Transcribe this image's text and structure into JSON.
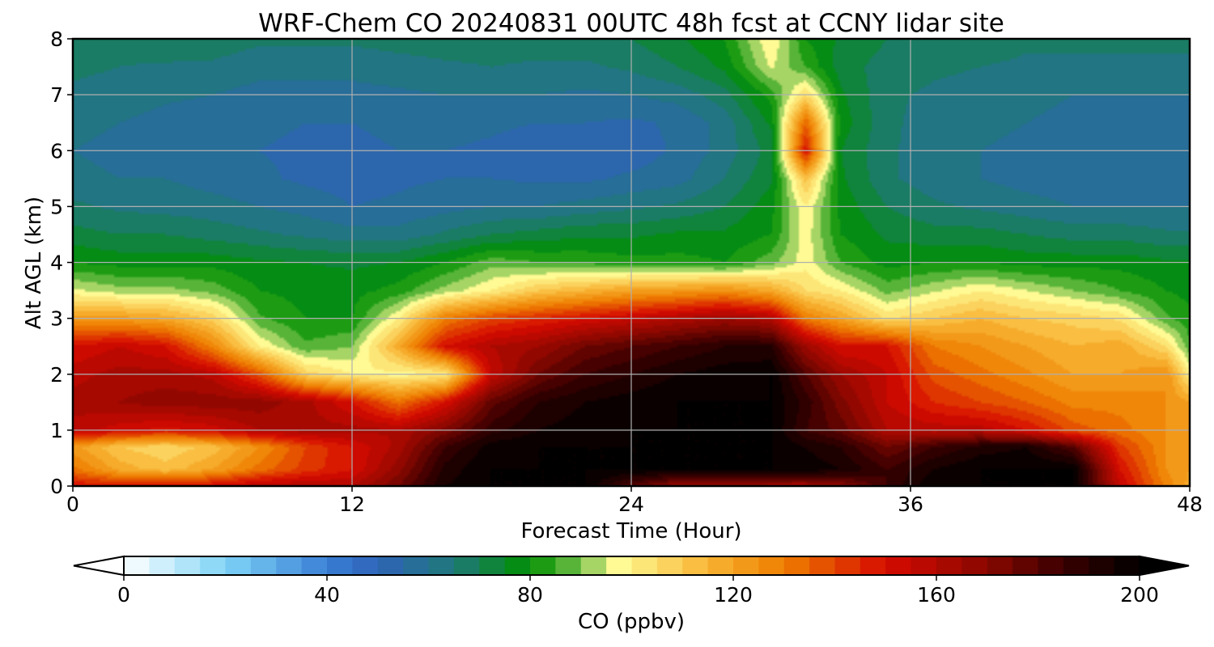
{
  "chart_data": {
    "type": "heatmap",
    "title": "WRF-Chem CO  20240831 00UTC 48h fcst at CCNY lidar site",
    "xlabel": "Forecast Time (Hour)",
    "ylabel": "Alt AGL (km)",
    "xlim": [
      0,
      48
    ],
    "ylim": [
      0,
      8
    ],
    "x_ticks": [
      0,
      12,
      24,
      36,
      48
    ],
    "x_tick_labels": [
      "0",
      "12",
      "24",
      "36",
      "48"
    ],
    "y_ticks": [
      0,
      1,
      2,
      3,
      4,
      5,
      6,
      7,
      8
    ],
    "y_tick_labels": [
      "0",
      "1",
      "2",
      "3",
      "4",
      "5",
      "6",
      "7",
      "8"
    ],
    "grid": true,
    "colorbar": {
      "label": "CO  (ppbv)",
      "orientation": "horizontal",
      "extend": "both",
      "range": [
        0,
        200
      ],
      "ticks": [
        0,
        40,
        80,
        120,
        160,
        200
      ],
      "tick_labels": [
        "0",
        "40",
        "80",
        "120",
        "160",
        "200"
      ],
      "color_stops": [
        {
          "value": 0,
          "color": "#ffffff"
        },
        {
          "value": 20,
          "color": "#7fd4f6"
        },
        {
          "value": 40,
          "color": "#3a7fd6"
        },
        {
          "value": 50,
          "color": "#2f63b8"
        },
        {
          "value": 65,
          "color": "#1f7878"
        },
        {
          "value": 80,
          "color": "#009000"
        },
        {
          "value": 90,
          "color": "#74c04a"
        },
        {
          "value": 97,
          "color": "#fffc96"
        },
        {
          "value": 115,
          "color": "#f8b434"
        },
        {
          "value": 130,
          "color": "#ee7e00"
        },
        {
          "value": 150,
          "color": "#d60a00"
        },
        {
          "value": 170,
          "color": "#880800"
        },
        {
          "value": 185,
          "color": "#3a0000"
        },
        {
          "value": 200,
          "color": "#000000"
        }
      ]
    },
    "x_hours": [
      0,
      2,
      4,
      6,
      8,
      10,
      12,
      14,
      16,
      18,
      20,
      22,
      24,
      26,
      28,
      30,
      31.5,
      33,
      35,
      37,
      39,
      41,
      43,
      45,
      47,
      48
    ],
    "y_km": [
      0,
      0.3,
      0.7,
      1,
      1.5,
      2,
      2.5,
      3,
      3.5,
      4,
      4.5,
      5,
      5.5,
      6,
      6.5,
      7,
      7.5,
      8
    ],
    "values_ppbv": [
      [
        150,
        148,
        150,
        152,
        158,
        160,
        160,
        175,
        195,
        200,
        200,
        200,
        180,
        165,
        165,
        162,
        162,
        168,
        185,
        200,
        200,
        200,
        200,
        155,
        128,
        118
      ],
      [
        132,
        118,
        112,
        120,
        132,
        142,
        150,
        168,
        192,
        200,
        200,
        200,
        200,
        200,
        200,
        200,
        198,
        195,
        185,
        195,
        200,
        200,
        200,
        150,
        125,
        120
      ],
      [
        122,
        110,
        106,
        112,
        125,
        140,
        150,
        162,
        185,
        198,
        200,
        200,
        200,
        200,
        200,
        200,
        195,
        190,
        175,
        185,
        192,
        195,
        180,
        142,
        125,
        120
      ],
      [
        158,
        152,
        148,
        152,
        160,
        162,
        162,
        160,
        172,
        188,
        195,
        198,
        200,
        200,
        200,
        200,
        185,
        178,
        160,
        158,
        158,
        150,
        138,
        132,
        125,
        122
      ],
      [
        162,
        165,
        168,
        168,
        168,
        162,
        150,
        132,
        150,
        178,
        190,
        195,
        198,
        200,
        200,
        200,
        188,
        172,
        155,
        145,
        140,
        135,
        128,
        128,
        125,
        120
      ],
      [
        158,
        162,
        162,
        158,
        138,
        108,
        100,
        98,
        100,
        155,
        175,
        185,
        190,
        195,
        198,
        200,
        180,
        165,
        155,
        138,
        132,
        126,
        120,
        120,
        125,
        100
      ],
      [
        150,
        155,
        150,
        128,
        100,
        86,
        90,
        118,
        150,
        160,
        165,
        175,
        180,
        185,
        190,
        190,
        165,
        150,
        150,
        130,
        125,
        120,
        115,
        118,
        105,
        86
      ],
      [
        122,
        122,
        118,
        108,
        86,
        80,
        80,
        100,
        130,
        140,
        145,
        150,
        155,
        160,
        165,
        160,
        130,
        120,
        104,
        110,
        115,
        110,
        108,
        104,
        86,
        82
      ],
      [
        96,
        92,
        92,
        88,
        80,
        78,
        78,
        82,
        92,
        100,
        110,
        115,
        120,
        122,
        125,
        118,
        105,
        100,
        88,
        94,
        100,
        95,
        90,
        85,
        80,
        78
      ],
      [
        80,
        78,
        78,
        78,
        76,
        75,
        74,
        75,
        80,
        88,
        85,
        84,
        82,
        82,
        80,
        88,
        98,
        85,
        78,
        80,
        80,
        78,
        78,
        78,
        76,
        76
      ],
      [
        72,
        70,
        70,
        68,
        66,
        64,
        62,
        62,
        66,
        70,
        72,
        74,
        74,
        76,
        76,
        80,
        98,
        80,
        74,
        72,
        72,
        70,
        68,
        68,
        66,
        66
      ],
      [
        66,
        64,
        63,
        62,
        60,
        58,
        55,
        56,
        58,
        60,
        60,
        62,
        64,
        66,
        70,
        78,
        100,
        78,
        70,
        66,
        64,
        62,
        60,
        60,
        60,
        60
      ],
      [
        62,
        60,
        60,
        58,
        56,
        54,
        53,
        54,
        55,
        55,
        54,
        54,
        56,
        58,
        65,
        74,
        112,
        76,
        66,
        62,
        60,
        58,
        57,
        57,
        58,
        58
      ],
      [
        60,
        58,
        57,
        56,
        55,
        54,
        54,
        55,
        55,
        54,
        52,
        53,
        52,
        56,
        62,
        72,
        150,
        75,
        66,
        62,
        60,
        58,
        56,
        55,
        56,
        58
      ],
      [
        62,
        60,
        58,
        57,
        56,
        55,
        55,
        56,
        57,
        56,
        55,
        55,
        54,
        56,
        62,
        76,
        135,
        78,
        66,
        63,
        62,
        60,
        58,
        58,
        58,
        58
      ],
      [
        64,
        63,
        61,
        60,
        58,
        58,
        58,
        59,
        60,
        60,
        60,
        59,
        60,
        62,
        68,
        82,
        105,
        76,
        66,
        64,
        63,
        62,
        60,
        60,
        60,
        60
      ],
      [
        66,
        65,
        64,
        64,
        62,
        62,
        62,
        63,
        64,
        65,
        64,
        64,
        66,
        70,
        76,
        96,
        85,
        72,
        68,
        66,
        65,
        64,
        64,
        64,
        64,
        64
      ],
      [
        68,
        68,
        70,
        68,
        66,
        66,
        66,
        67,
        68,
        68,
        68,
        68,
        70,
        74,
        80,
        100,
        80,
        74,
        70,
        68,
        68,
        66,
        66,
        66,
        66,
        66
      ]
    ]
  }
}
